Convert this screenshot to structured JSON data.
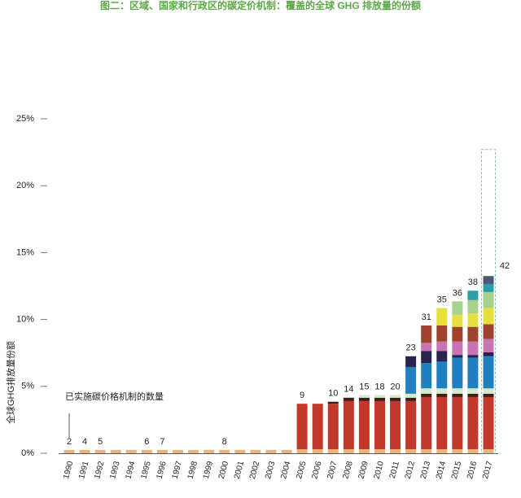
{
  "chart_data": {
    "type": "stacked_bar",
    "title": "图二：区域、国家和行政区的碳定价机制：覆盖的全球 GHG 排放量的份额",
    "y_label": "全球GHG排放量份额",
    "annotation": "已实施碳价格机制的数量",
    "categories": [
      "1990",
      "1991",
      "1992",
      "1993",
      "1994",
      "1995",
      "1996",
      "1997",
      "1998",
      "1999",
      "2000",
      "2001",
      "2002",
      "2003",
      "2004",
      "2005",
      "2006",
      "2007",
      "2008",
      "2009",
      "2010",
      "2011",
      "2012",
      "2013",
      "2014",
      "2015",
      "2016",
      "2017"
    ],
    "count_labels": [
      2,
      4,
      5,
      null,
      null,
      6,
      7,
      null,
      null,
      null,
      8,
      null,
      null,
      null,
      null,
      9,
      null,
      10,
      14,
      15,
      18,
      20,
      23,
      31,
      35,
      36,
      38,
      42
    ],
    "series": [
      {
        "color": "#f0b27a",
        "values": [
          0.25,
          0.25,
          0.25,
          0.25,
          0.25,
          0.25,
          0.25,
          0.25,
          0.25,
          0.25,
          0.25,
          0.25,
          0.25,
          0.25,
          0.25,
          0.3,
          0.3,
          0.3,
          0.3,
          0.3,
          0.3,
          0.3,
          0.3,
          0.3,
          0.3,
          0.3,
          0.3,
          0.3
        ]
      },
      {
        "color": "#c0392b",
        "values": [
          0,
          0,
          0,
          0,
          0,
          0,
          0,
          0,
          0,
          0,
          0,
          0,
          0,
          0,
          0,
          3.4,
          3.4,
          3.4,
          3.6,
          3.6,
          3.6,
          3.6,
          3.6,
          3.9,
          3.9,
          3.9,
          3.9,
          3.9
        ]
      },
      {
        "color": "#3b1f1a",
        "values": [
          0,
          0,
          0,
          0,
          0,
          0,
          0,
          0,
          0,
          0,
          0,
          0,
          0,
          0,
          0,
          0,
          0,
          0.15,
          0.25,
          0.25,
          0.25,
          0.25,
          0.25,
          0.25,
          0.25,
          0.25,
          0.25,
          0.25
        ]
      },
      {
        "color": "#d5e8c8",
        "values": [
          0,
          0,
          0,
          0,
          0,
          0,
          0,
          0,
          0,
          0,
          0,
          0,
          0,
          0,
          0,
          0,
          0,
          0,
          0,
          0.2,
          0.2,
          0.2,
          0.3,
          0.4,
          0.4,
          0.4,
          0.4,
          0.4
        ]
      },
      {
        "color": "#1f7fbf",
        "values": [
          0,
          0,
          0,
          0,
          0,
          0,
          0,
          0,
          0,
          0,
          0,
          0,
          0,
          0,
          0,
          0,
          0,
          0,
          0,
          0,
          0,
          0,
          2.0,
          1.9,
          2.0,
          2.3,
          2.3,
          2.4
        ]
      },
      {
        "color": "#2a2350",
        "values": [
          0,
          0,
          0,
          0,
          0,
          0,
          0,
          0,
          0,
          0,
          0,
          0,
          0,
          0,
          0,
          0,
          0,
          0,
          0,
          0,
          0,
          0,
          0.8,
          0.9,
          0.8,
          0.2,
          0.2,
          0.3
        ]
      },
      {
        "color": "#c774b0",
        "values": [
          0,
          0,
          0,
          0,
          0,
          0,
          0,
          0,
          0,
          0,
          0,
          0,
          0,
          0,
          0,
          0,
          0,
          0,
          0,
          0,
          0,
          0,
          0,
          0.6,
          0.7,
          1.0,
          1.0,
          1.0
        ]
      },
      {
        "color": "#a0432e",
        "values": [
          0,
          0,
          0,
          0,
          0,
          0,
          0,
          0,
          0,
          0,
          0,
          0,
          0,
          0,
          0,
          0,
          0,
          0,
          0,
          0,
          0,
          0,
          0,
          1.3,
          1.2,
          1.1,
          1.1,
          1.1
        ]
      },
      {
        "color": "#e8e03a",
        "values": [
          0,
          0,
          0,
          0,
          0,
          0,
          0,
          0,
          0,
          0,
          0,
          0,
          0,
          0,
          0,
          0,
          0,
          0,
          0,
          0,
          0,
          0,
          0,
          0,
          1.3,
          0.9,
          1.0,
          1.2
        ]
      },
      {
        "color": "#a9d18e",
        "values": [
          0,
          0,
          0,
          0,
          0,
          0,
          0,
          0,
          0,
          0,
          0,
          0,
          0,
          0,
          0,
          0,
          0,
          0,
          0,
          0,
          0,
          0,
          0,
          0,
          0,
          1.0,
          1.0,
          1.2
        ]
      },
      {
        "color": "#2a9da8",
        "values": [
          0,
          0,
          0,
          0,
          0,
          0,
          0,
          0,
          0,
          0,
          0,
          0,
          0,
          0,
          0,
          0,
          0,
          0,
          0,
          0,
          0,
          0,
          0,
          0,
          0,
          0,
          0.7,
          0.6
        ]
      },
      {
        "color": "#4a5a78",
        "values": [
          0,
          0,
          0,
          0,
          0,
          0,
          0,
          0,
          0,
          0,
          0,
          0,
          0,
          0,
          0,
          0,
          0,
          0,
          0,
          0,
          0,
          0,
          0,
          0,
          0,
          0,
          0,
          0.6
        ]
      }
    ],
    "outline": {
      "color": "#7fc4b8",
      "values": [
        null,
        null,
        null,
        null,
        null,
        null,
        null,
        null,
        null,
        null,
        null,
        null,
        null,
        null,
        null,
        null,
        null,
        null,
        null,
        null,
        null,
        null,
        null,
        null,
        null,
        null,
        null,
        22.7
      ]
    },
    "ylim": [
      0,
      25
    ],
    "yticks": [
      {
        "value": 0,
        "label": "0%"
      },
      {
        "value": 5,
        "label": "5%"
      },
      {
        "value": 10,
        "label": "10%"
      },
      {
        "value": 15,
        "label": "15%"
      },
      {
        "value": 20,
        "label": "20%"
      },
      {
        "value": 25,
        "label": "25%"
      }
    ]
  }
}
